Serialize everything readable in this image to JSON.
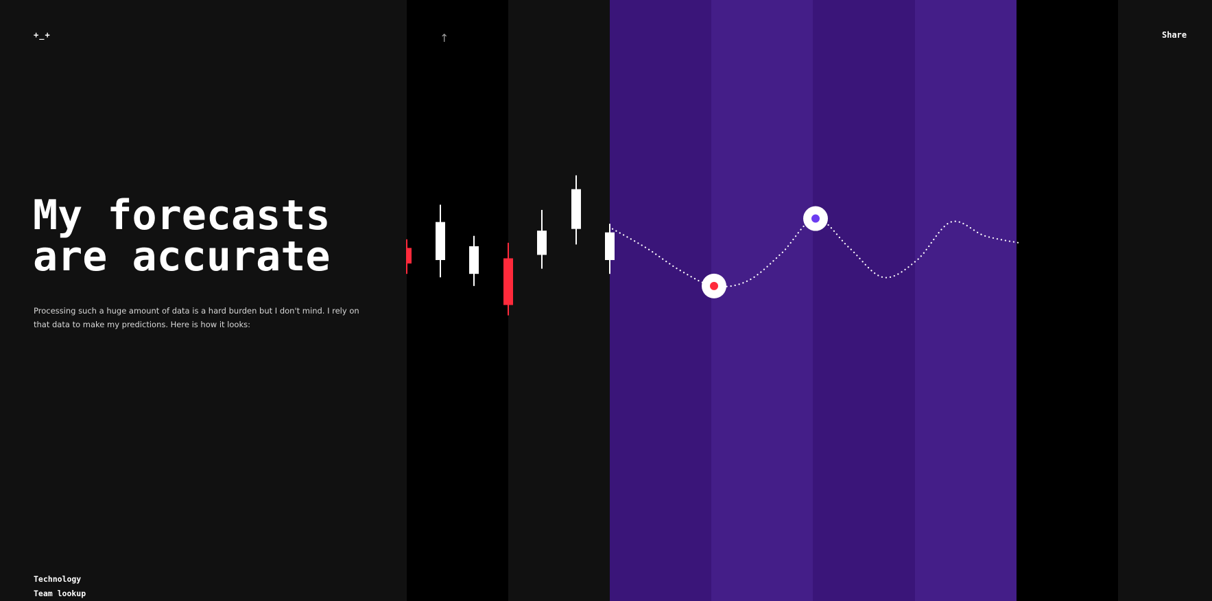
{
  "header": {
    "logo_text": "+_+",
    "up_icon": "arrow-up-icon",
    "share_label": "Share"
  },
  "hero": {
    "title_line1": "My forecasts",
    "title_line2": "are accurate",
    "description": "Processing such a huge amount of data is a hard burden but I don't mind. I rely on that data to make my predictions. Here is how it looks:"
  },
  "nav": {
    "items": [
      {
        "label": "Technology"
      },
      {
        "label": "Team lookup"
      }
    ]
  },
  "colors": {
    "background": "#111111",
    "band_dark": "#000000",
    "purple_a": "#3a1579",
    "purple_b": "#441e88",
    "candle_up": "#ffffff",
    "candle_down": "#ff2a3b",
    "marker_red": "#ff2a3b",
    "marker_purple": "#6c3cf0"
  },
  "chart_data": {
    "type": "candlestick-with-forecast",
    "candles": [
      {
        "dir": "down",
        "open": 0.55,
        "close": 0.46,
        "high": 0.6,
        "low": 0.4
      },
      {
        "dir": "up",
        "open": 0.48,
        "close": 0.7,
        "high": 0.8,
        "low": 0.38
      },
      {
        "dir": "up",
        "open": 0.4,
        "close": 0.56,
        "high": 0.62,
        "low": 0.33
      },
      {
        "dir": "down",
        "open": 0.49,
        "close": 0.22,
        "high": 0.58,
        "low": 0.16
      },
      {
        "dir": "up",
        "open": 0.51,
        "close": 0.65,
        "high": 0.77,
        "low": 0.43
      },
      {
        "dir": "up",
        "open": 0.66,
        "close": 0.89,
        "high": 0.97,
        "low": 0.57
      },
      {
        "dir": "up",
        "open": 0.48,
        "close": 0.64,
        "high": 0.69,
        "low": 0.4
      }
    ],
    "forecast": {
      "x": [
        0,
        1,
        2,
        3,
        4,
        5,
        6,
        7,
        8,
        9,
        10,
        11,
        12
      ],
      "y": [
        0.66,
        0.55,
        0.42,
        0.33,
        0.36,
        0.52,
        0.72,
        0.55,
        0.38,
        0.48,
        0.7,
        0.62,
        0.58
      ],
      "markers": [
        {
          "index": 3,
          "color": "red"
        },
        {
          "index": 6,
          "color": "purple"
        }
      ]
    }
  }
}
